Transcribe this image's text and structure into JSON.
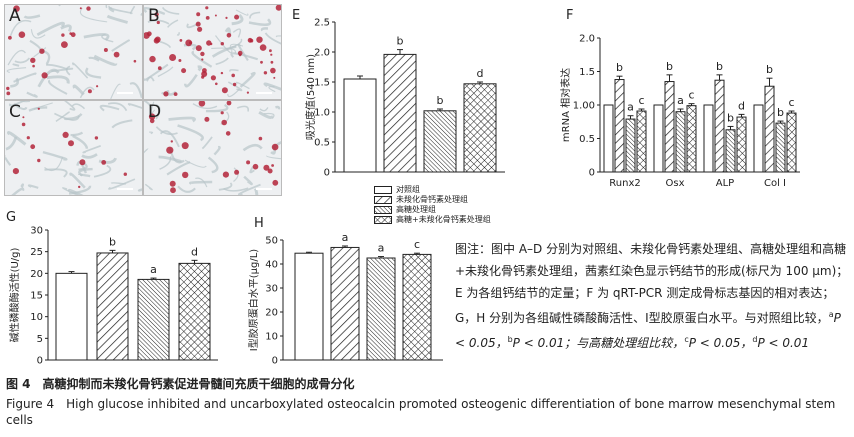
{
  "panels": {
    "A": "A",
    "B": "B",
    "C": "C",
    "D": "D",
    "E": "E",
    "F": "F",
    "G": "G",
    "H": "H"
  },
  "legend": {
    "items": [
      {
        "label": "对照组",
        "pattern": "white"
      },
      {
        "label": "未羧化骨钙素处理组",
        "pattern": "diag"
      },
      {
        "label": "高糖处理组",
        "pattern": "dense-diag"
      },
      {
        "label": "高糖+未羧化骨钙素处理组",
        "pattern": "cross"
      }
    ]
  },
  "chart_data": [
    {
      "id": "E",
      "type": "bar",
      "ylabel": "吸光度值(540 nm)",
      "ylim": [
        0,
        2.5
      ],
      "yticks": [
        "0",
        "0.5",
        "1.0",
        "1.5",
        "2.0",
        "2.5"
      ],
      "values": [
        1.55,
        1.96,
        1.02,
        1.47
      ],
      "errors": [
        0.05,
        0.08,
        0.03,
        0.03
      ],
      "sig": [
        "",
        "b",
        "b",
        "d"
      ]
    },
    {
      "id": "F",
      "type": "bar",
      "ylabel": "mRNA 相对表达",
      "ylim": [
        0,
        2.0
      ],
      "yticks": [
        "0",
        "0.5",
        "1.00",
        "1.5",
        "2.0"
      ],
      "categories": [
        "Runx2",
        "Osx",
        "ALP",
        "Col I"
      ],
      "series": [
        {
          "values": [
            1.0,
            1.0,
            1.0,
            1.0
          ],
          "errors": [
            0,
            0,
            0,
            0
          ],
          "sig": [
            "",
            "",
            "",
            ""
          ]
        },
        {
          "values": [
            1.38,
            1.35,
            1.37,
            1.28
          ],
          "errors": [
            0.05,
            0.1,
            0.08,
            0.12
          ],
          "sig": [
            "b",
            "b",
            "b",
            "b"
          ]
        },
        {
          "values": [
            0.79,
            0.9,
            0.63,
            0.73
          ],
          "errors": [
            0.05,
            0.04,
            0.05,
            0.03
          ],
          "sig": [
            "a",
            "a",
            "b",
            "b"
          ]
        },
        {
          "values": [
            0.91,
            0.99,
            0.82,
            0.88
          ],
          "errors": [
            0.03,
            0.03,
            0.04,
            0.03
          ],
          "sig": [
            "c",
            "c",
            "d",
            "c"
          ]
        }
      ]
    },
    {
      "id": "G",
      "type": "bar",
      "ylabel": "碱性磷酸酶活性(U/g)",
      "ylim": [
        0,
        30
      ],
      "yticks": [
        "0",
        "5",
        "10",
        "15",
        "20",
        "25",
        "30"
      ],
      "values": [
        20.0,
        24.7,
        18.6,
        22.3
      ],
      "errors": [
        0.4,
        0.6,
        0.3,
        0.7
      ],
      "sig": [
        "",
        "b",
        "a",
        "d"
      ]
    },
    {
      "id": "H",
      "type": "bar",
      "ylabel": "Ⅰ型胶原蛋白水平(μg/L)",
      "ylim": [
        0,
        50
      ],
      "yticks": [
        "0",
        "10",
        "20",
        "30",
        "40",
        "50"
      ],
      "values": [
        44.5,
        46.9,
        42.5,
        44.0
      ],
      "errors": [
        0.4,
        0.6,
        0.6,
        0.5
      ],
      "sig": [
        "",
        "a",
        "a",
        "c"
      ]
    }
  ],
  "note": {
    "p1": "图注：图中 A–D 分别为对照组、未羧化骨钙素处理组、高糖处理组和高糖+未羧化骨钙素处理组，茜素红染色显示钙结节的形成(标尺为 100 μm)；E 为各组钙结节的定量；F 为 qRT-PCR 测定成骨标志基因的相对表达；G，H 分别为各组碱性磷酸酶活性、Ⅰ型胶原蛋白水平。与对照组比较，",
    "a": "a",
    "t1": "P < 0.05，",
    "b": "b",
    "t2": "P < 0.01；与高糖处理组比较，",
    "c": "c",
    "t3": "P < 0.05，",
    "d": "d",
    "t4": "P < 0.01"
  },
  "caption": {
    "zh": "图 4　高糖抑制而未羧化骨钙素促进骨髓间充质干细胞的成骨分化",
    "en": "Figure 4　High glucose inhibited and uncarboxylated osteocalcin promoted osteogenic differentiation of bone marrow mesenchymal stem cells"
  },
  "colors": {
    "stain": "#b3243a",
    "tissue": "#b8c4c9",
    "background": "#eef0f2"
  }
}
